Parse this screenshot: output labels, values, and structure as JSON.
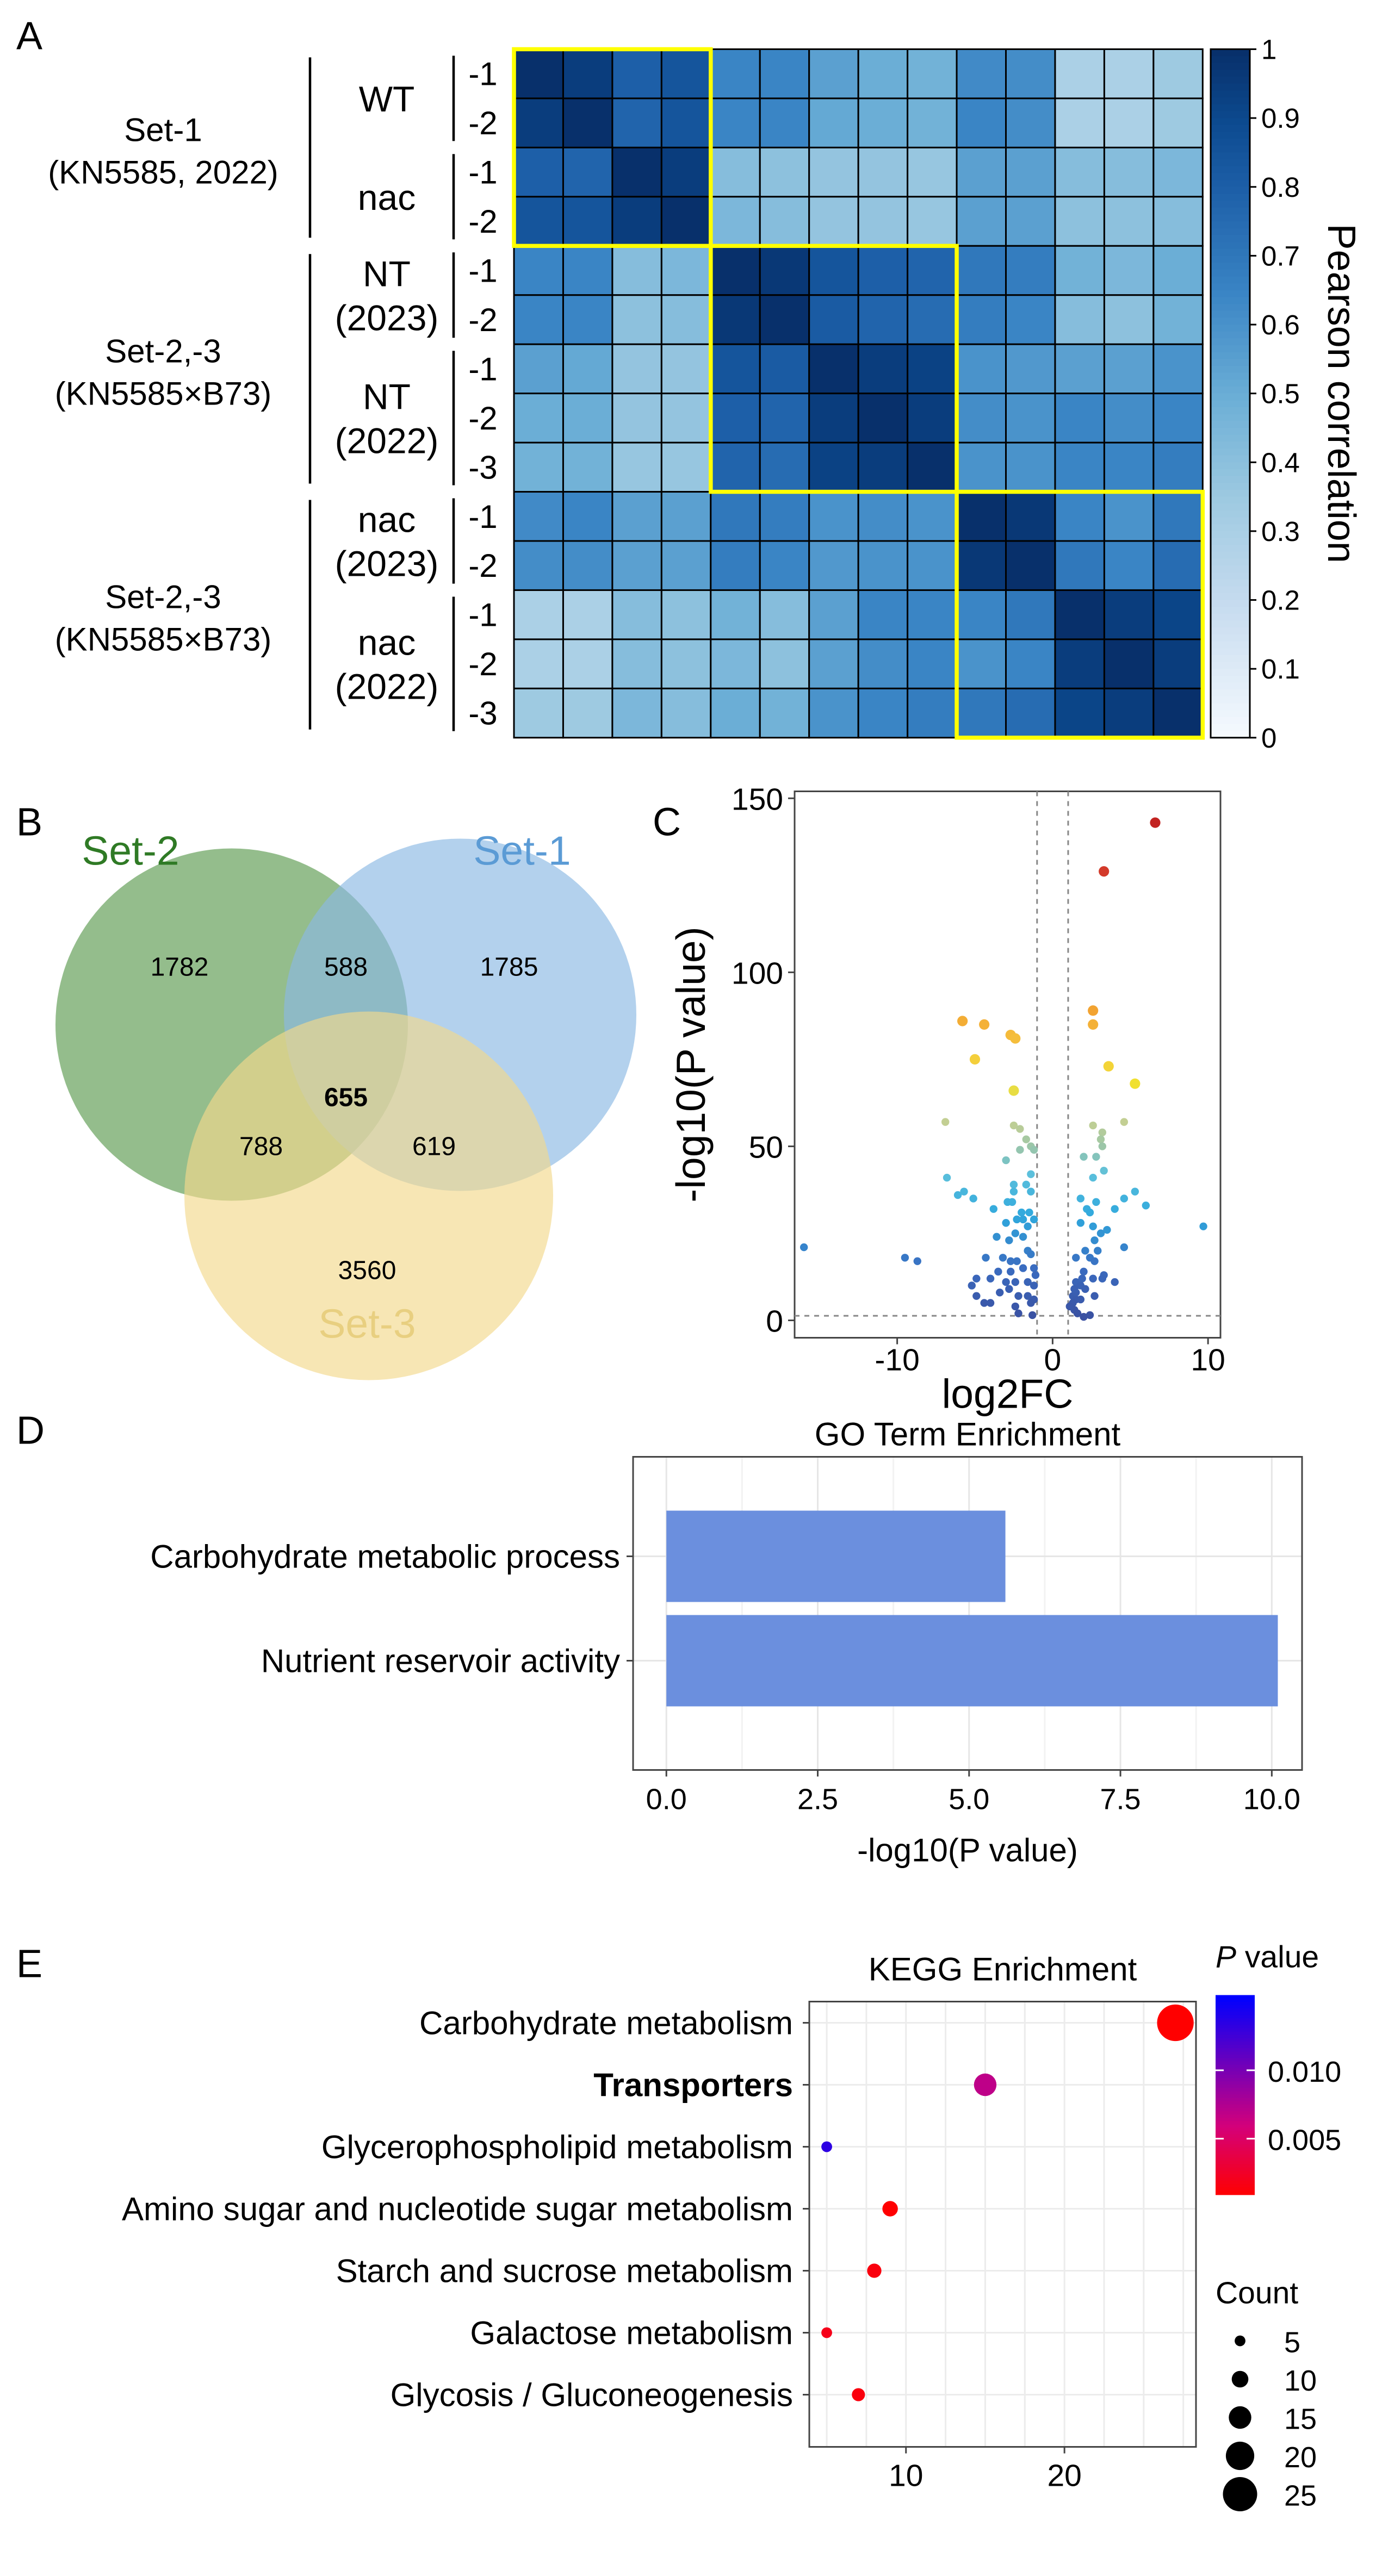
{
  "panel_labels": {
    "a": "A",
    "b": "B",
    "c": "C",
    "d": "D",
    "e": "E"
  },
  "heatmap_labels": {
    "set1": [
      "Set-1",
      "(KN5585, 2022)"
    ],
    "set23a": [
      "Set-2,-3",
      "(KN5585×B73)"
    ],
    "set23b": [
      "Set-2,-3",
      "(KN5585×B73)"
    ],
    "groups": [
      [
        "WT"
      ],
      [
        "nac"
      ],
      [
        "NT",
        "(2023)"
      ],
      [
        "NT",
        "(2022)"
      ],
      [
        "nac",
        "(2023)"
      ],
      [
        "nac",
        "(2022)"
      ]
    ]
  },
  "chart_data": [
    {
      "type": "heatmap",
      "row_labels": [
        "-1",
        "-2",
        "-1",
        "-2",
        "-1",
        "-2",
        "-1",
        "-2",
        "-3",
        "-1",
        "-2",
        "-1",
        "-2",
        "-3"
      ],
      "colorbar_label": "Pearson correlation",
      "colorbar_ticks": [
        "0",
        "0.1",
        "0.2",
        "0.3",
        "0.4",
        "0.5",
        "0.6",
        "0.7",
        "0.8",
        "0.9",
        "1"
      ],
      "range": [
        0,
        1
      ],
      "highlight_color": "#ffff00",
      "highlight_blocks": [
        [
          0,
          3
        ],
        [
          4,
          8
        ],
        [
          9,
          13
        ]
      ],
      "values": [
        [
          1,
          0.95,
          0.8,
          0.85,
          0.65,
          0.65,
          0.55,
          0.5,
          0.48,
          0.63,
          0.62,
          0.3,
          0.3,
          0.35
        ],
        [
          0.95,
          1,
          0.78,
          0.85,
          0.65,
          0.65,
          0.52,
          0.5,
          0.48,
          0.65,
          0.62,
          0.3,
          0.3,
          0.35
        ],
        [
          0.8,
          0.78,
          1,
          0.95,
          0.42,
          0.4,
          0.38,
          0.38,
          0.37,
          0.55,
          0.55,
          0.42,
          0.42,
          0.45
        ],
        [
          0.85,
          0.85,
          0.95,
          1,
          0.45,
          0.42,
          0.38,
          0.38,
          0.37,
          0.55,
          0.55,
          0.4,
          0.4,
          0.42
        ],
        [
          0.65,
          0.65,
          0.42,
          0.45,
          1,
          0.97,
          0.85,
          0.8,
          0.78,
          0.7,
          0.68,
          0.48,
          0.45,
          0.5
        ],
        [
          0.65,
          0.65,
          0.4,
          0.42,
          0.97,
          1,
          0.82,
          0.78,
          0.75,
          0.68,
          0.65,
          0.42,
          0.4,
          0.48
        ],
        [
          0.55,
          0.52,
          0.38,
          0.38,
          0.85,
          0.82,
          1,
          0.95,
          0.93,
          0.6,
          0.58,
          0.55,
          0.55,
          0.6
        ],
        [
          0.5,
          0.5,
          0.38,
          0.38,
          0.8,
          0.78,
          0.95,
          1,
          0.95,
          0.62,
          0.6,
          0.65,
          0.62,
          0.65
        ],
        [
          0.48,
          0.48,
          0.37,
          0.37,
          0.78,
          0.75,
          0.93,
          0.95,
          1,
          0.6,
          0.6,
          0.65,
          0.65,
          0.68
        ],
        [
          0.63,
          0.65,
          0.55,
          0.55,
          0.7,
          0.68,
          0.6,
          0.62,
          0.6,
          1,
          0.97,
          0.65,
          0.6,
          0.7
        ],
        [
          0.62,
          0.62,
          0.55,
          0.55,
          0.68,
          0.65,
          0.58,
          0.6,
          0.6,
          0.97,
          1,
          0.7,
          0.65,
          0.75
        ],
        [
          0.3,
          0.3,
          0.42,
          0.4,
          0.48,
          0.42,
          0.55,
          0.65,
          0.65,
          0.65,
          0.7,
          1,
          0.95,
          0.92
        ],
        [
          0.3,
          0.3,
          0.42,
          0.4,
          0.45,
          0.4,
          0.55,
          0.62,
          0.65,
          0.6,
          0.65,
          0.95,
          1,
          0.95
        ],
        [
          0.35,
          0.35,
          0.45,
          0.42,
          0.5,
          0.48,
          0.6,
          0.65,
          0.68,
          0.7,
          0.75,
          0.92,
          0.95,
          1
        ]
      ]
    },
    {
      "type": "venn",
      "sets": [
        {
          "name": "Set-2",
          "color": "#5a9a4e",
          "text_color": "#2f7a25"
        },
        {
          "name": "Set-1",
          "color": "#8ab8e4",
          "text_color": "#5b9bd5"
        },
        {
          "name": "Set-3",
          "color": "#f2d88c",
          "text_color": "#e8cf80"
        }
      ],
      "regions": {
        "set2_only": "1782",
        "set1_set2": "588",
        "set1_only": "1785",
        "all": "655",
        "set2_set3": "788",
        "set1_set3": "619",
        "set3_only": "3560"
      }
    },
    {
      "type": "scatter",
      "xlabel": "log2FC",
      "ylabel": "-log10(P value)",
      "xticks": [
        "-10",
        "0",
        "10"
      ],
      "yticks": [
        "0",
        "50",
        "100",
        "150"
      ],
      "xlim": [
        -16.6,
        10.8
      ],
      "ylim": [
        -5,
        152
      ],
      "thresholds": {
        "x": [
          -1,
          1
        ],
        "y": 1.3
      },
      "points": [
        [
          6.6,
          143
        ],
        [
          3.3,
          129
        ],
        [
          2.6,
          89
        ],
        [
          2.6,
          85
        ],
        [
          -5.8,
          86
        ],
        [
          -4.4,
          85
        ],
        [
          -2.7,
          82
        ],
        [
          -2.4,
          81
        ],
        [
          -5.0,
          75
        ],
        [
          3.6,
          73
        ],
        [
          5.3,
          68
        ],
        [
          -2.5,
          66
        ],
        [
          -6.9,
          57
        ],
        [
          -2.5,
          56
        ],
        [
          -2.1,
          55
        ],
        [
          2.6,
          56
        ],
        [
          4.6,
          57
        ],
        [
          3.2,
          54
        ],
        [
          -1.7,
          52
        ],
        [
          3.1,
          52
        ],
        [
          3.2,
          50
        ],
        [
          -2.1,
          49
        ],
        [
          -1.4,
          50
        ],
        [
          -1.2,
          49
        ],
        [
          -3,
          46
        ],
        [
          2,
          47
        ],
        [
          2.8,
          47
        ],
        [
          -6.8,
          41
        ],
        [
          -1.4,
          42
        ],
        [
          3.3,
          43
        ],
        [
          2.6,
          41
        ],
        [
          -2.5,
          39
        ],
        [
          -1.7,
          39
        ],
        [
          -2.5,
          37
        ],
        [
          -6.1,
          36
        ],
        [
          -5.7,
          37
        ],
        [
          -5.1,
          35
        ],
        [
          -1.4,
          37
        ],
        [
          1.8,
          35
        ],
        [
          2.8,
          34
        ],
        [
          4.6,
          35
        ],
        [
          5.3,
          37
        ],
        [
          6,
          33
        ],
        [
          9.7,
          27
        ],
        [
          -2.9,
          34
        ],
        [
          -2.6,
          34
        ],
        [
          -3.8,
          32
        ],
        [
          4,
          32
        ],
        [
          2.2,
          32
        ],
        [
          2.4,
          31
        ],
        [
          -2,
          31
        ],
        [
          -1.5,
          31
        ],
        [
          -3,
          28
        ],
        [
          -2.3,
          29
        ],
        [
          -1.9,
          29
        ],
        [
          -1.2,
          29
        ],
        [
          1.8,
          28
        ],
        [
          2.6,
          27
        ],
        [
          -2.4,
          25
        ],
        [
          -1.6,
          27
        ],
        [
          3.5,
          26
        ],
        [
          3.1,
          25
        ],
        [
          2.7,
          23
        ],
        [
          -16,
          21
        ],
        [
          -9.5,
          18
        ],
        [
          -8.7,
          17
        ],
        [
          4.6,
          21
        ],
        [
          -3.6,
          24
        ],
        [
          -2.8,
          23
        ],
        [
          -1.9,
          24
        ],
        [
          -1.6,
          20
        ],
        [
          -1.4,
          19
        ],
        [
          -3.2,
          18
        ],
        [
          -4.3,
          18
        ],
        [
          -2.3,
          17
        ],
        [
          -2.7,
          17
        ],
        [
          1.5,
          18
        ],
        [
          2.1,
          20
        ],
        [
          2.4,
          18
        ],
        [
          2.9,
          20
        ],
        [
          2.7,
          17
        ],
        [
          -1.9,
          15
        ],
        [
          -1.2,
          15
        ],
        [
          -3.5,
          14
        ],
        [
          -2.7,
          14
        ],
        [
          2,
          14
        ],
        [
          3.3,
          13
        ],
        [
          -1.1,
          13
        ],
        [
          -4.9,
          12
        ],
        [
          -5.2,
          10
        ],
        [
          -4,
          12
        ],
        [
          -3,
          11
        ],
        [
          -2.4,
          11
        ],
        [
          -1.6,
          11
        ],
        [
          -1.2,
          10
        ],
        [
          1.5,
          11
        ],
        [
          1.9,
          12
        ],
        [
          2.6,
          12
        ],
        [
          4,
          11
        ],
        [
          3.2,
          12
        ],
        [
          -3.4,
          8
        ],
        [
          -2.8,
          9
        ],
        [
          -2.2,
          7
        ],
        [
          -1.6,
          7
        ],
        [
          -1.2,
          6
        ],
        [
          -1.4,
          5
        ],
        [
          -4.9,
          7
        ],
        [
          -4.4,
          5
        ],
        [
          -4,
          5
        ],
        [
          1.3,
          7
        ],
        [
          1.5,
          6
        ],
        [
          1.3,
          5
        ],
        [
          1.8,
          6
        ],
        [
          1.4,
          3
        ],
        [
          1.6,
          2
        ],
        [
          -2.4,
          4
        ],
        [
          -2.2,
          2
        ],
        [
          -1.3,
          1.5
        ],
        [
          2,
          1
        ],
        [
          2.4,
          1.5
        ],
        [
          1.1,
          4
        ],
        [
          1.5,
          8
        ],
        [
          1.8,
          10
        ],
        [
          1.4,
          9
        ],
        [
          2.1,
          9
        ],
        [
          2.7,
          7
        ]
      ]
    },
    {
      "type": "bar",
      "orientation": "horizontal",
      "title": "GO Term Enrichment",
      "xlabel": "-log10(P value)",
      "categories": [
        "Carbohydrate metabolic process",
        "Nutrient reservoir activity"
      ],
      "values": [
        5.6,
        10.1
      ],
      "xticks": [
        "0.0",
        "2.5",
        "5.0",
        "7.5",
        "10.0"
      ],
      "xlim": [
        -0.55,
        10.5
      ],
      "bar_color": "#6b8fde",
      "grid": true
    },
    {
      "type": "scatter",
      "title": "KEGG Enrichment",
      "categories": [
        "Carbohydrate metabolism",
        "Transporters",
        "Glycerophospholipid metabolism",
        "Amino sugar and nucleotide sugar metabolism",
        "Starch and sucrose metabolism",
        "Galactose metabolism",
        "Glycosis / Gluconeogenesis"
      ],
      "bold_category": "Transporters",
      "x": [
        27,
        15,
        5,
        9,
        8,
        5,
        7
      ],
      "count": [
        27,
        15,
        5,
        9,
        8,
        5,
        7
      ],
      "p_value": [
        0.0005,
        0.007,
        0.0135,
        0.001,
        0.0015,
        0.002,
        0.0015
      ],
      "xticks": [
        "10",
        "20"
      ],
      "xlim": [
        3.9,
        28.3
      ],
      "color_legend": {
        "title_italic": "P",
        "title_rest": " value",
        "ticks": [
          "0.010",
          "0.005"
        ],
        "low_color": "#ff0000",
        "high_color": "#0000ff",
        "range": [
          0.00095,
          0.0155
        ]
      },
      "size_legend": {
        "title": "Count",
        "values": [
          "5",
          "10",
          "15",
          "20",
          "25"
        ]
      },
      "grid": true
    }
  ]
}
